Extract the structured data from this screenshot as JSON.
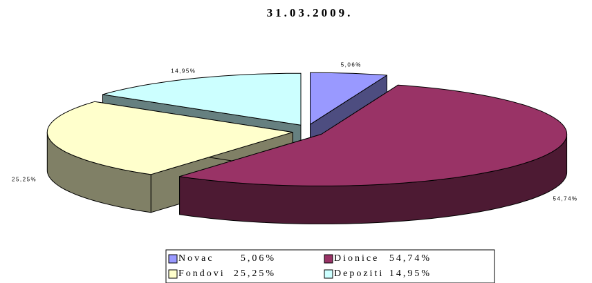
{
  "chart_data": {
    "type": "pie",
    "title": "31.03.2009.",
    "categories": [
      "Novac",
      "Dionice",
      "Fondovi",
      "Depoziti"
    ],
    "values": [
      5.06,
      54.74,
      25.25,
      14.95
    ],
    "value_labels": [
      "5,06%",
      "54,74%",
      "25,25%",
      "14,95%"
    ],
    "colors": [
      "#9999ff",
      "#993366",
      "#ffffcc",
      "#ccffff"
    ],
    "legend": "bottom"
  }
}
